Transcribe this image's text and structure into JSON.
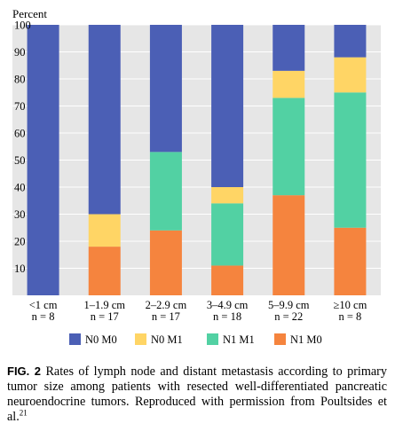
{
  "chart_data": {
    "type": "bar",
    "stacked": true,
    "ylabel": "Percent",
    "ylim": [
      0,
      100
    ],
    "yticks": [
      10,
      20,
      30,
      40,
      50,
      60,
      70,
      80,
      90,
      100
    ],
    "grid": true,
    "legend_position": "bottom",
    "categories": [
      "<1 cm",
      "1–1.9 cm",
      "2–2.9 cm",
      "3–4.9 cm",
      "5–9.9 cm",
      "≥10 cm"
    ],
    "category_counts": [
      "n = 8",
      "n = 17",
      "n = 17",
      "n = 18",
      "n = 22",
      "n = 8"
    ],
    "series": [
      {
        "name": "N1 M0",
        "color": "#f5843e",
        "values": [
          0,
          18,
          24,
          11,
          37,
          25
        ]
      },
      {
        "name": "N1 M1",
        "color": "#52d1a3",
        "values": [
          0,
          0,
          29,
          23,
          36,
          50
        ]
      },
      {
        "name": "N0 M1",
        "color": "#ffd565",
        "values": [
          0,
          12,
          0,
          6,
          10,
          13
        ]
      },
      {
        "name": "N0 M0",
        "color": "#4b5fb5",
        "values": [
          100,
          70,
          47,
          60,
          17,
          12
        ]
      }
    ],
    "legend_order": [
      "N0 M0",
      "N0 M1",
      "N1 M1",
      "N1 M0"
    ]
  },
  "caption": {
    "label": "FIG. 2",
    "text": " Rates of lymph node and distant metastasis according to primary tumor size among patients with resected well-differentiated pancreatic neuroendocrine tumors. Reproduced with permission from Poultsides et al.",
    "ref": "21"
  }
}
